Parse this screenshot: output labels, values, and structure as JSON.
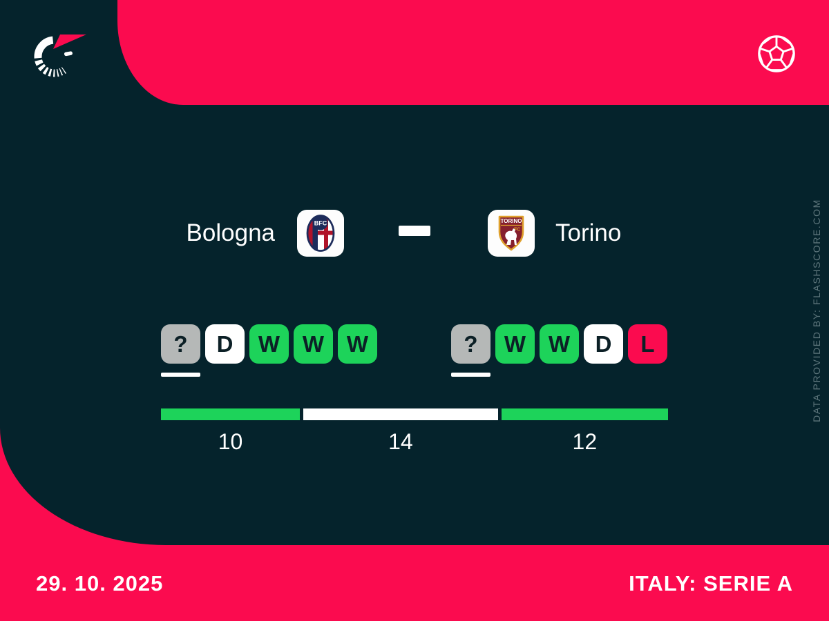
{
  "colors": {
    "pink": "#fb0b4f",
    "dark": "#05232c",
    "green": "#1dd35a",
    "gray": "#b5b8b7",
    "ink": "#0c2026",
    "muted": "#5e767c",
    "white": "#ffffff",
    "bologna_navy": "#1d2c5b",
    "bologna_red": "#b01329",
    "torino_maroon": "#86202d",
    "torino_gold": "#dfa12c"
  },
  "match": {
    "home": {
      "name": "Bologna",
      "crest_abbr": "BFC"
    },
    "away": {
      "name": "Torino",
      "crest_line1": "TORINO",
      "crest_line2": "FC"
    }
  },
  "form": {
    "home": [
      {
        "label": "?",
        "result": "unknown"
      },
      {
        "label": "D",
        "result": "draw"
      },
      {
        "label": "W",
        "result": "win"
      },
      {
        "label": "W",
        "result": "win"
      },
      {
        "label": "W",
        "result": "win"
      }
    ],
    "away": [
      {
        "label": "?",
        "result": "unknown"
      },
      {
        "label": "W",
        "result": "win"
      },
      {
        "label": "W",
        "result": "win"
      },
      {
        "label": "D",
        "result": "draw"
      },
      {
        "label": "L",
        "result": "loss"
      }
    ]
  },
  "chart_data": {
    "type": "bar",
    "subtype": "horizontal-stacked-head-to-head",
    "values": [
      10,
      14,
      12
    ],
    "segment_colors": [
      "#1dd35a",
      "#ffffff",
      "#1dd35a"
    ],
    "labels": [
      "10",
      "14",
      "12"
    ],
    "total": 36,
    "legend_position": "none",
    "grid": false
  },
  "footer": {
    "date": "29. 10. 2025",
    "league": "ITALY: SERIE A"
  },
  "watermark": "DATA PROVIDED BY: FLASHSCORE.COM"
}
